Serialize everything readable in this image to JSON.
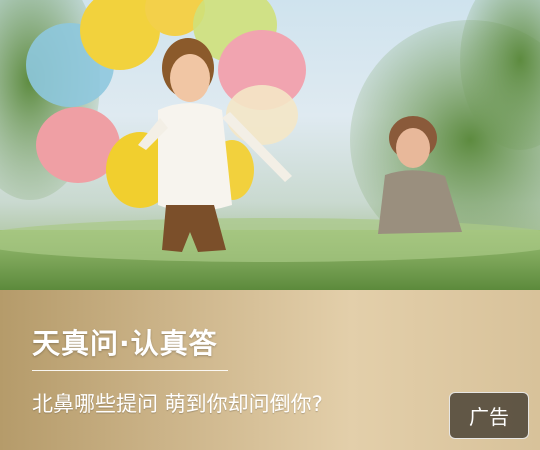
{
  "brand": {
    "text": "天真问·认真答"
  },
  "headline": {
    "text": "北鼻哪些提问 萌到你却问倒你?"
  },
  "badge": {
    "label": "广告"
  },
  "colors": {
    "panel_gold": "#cbb388",
    "badge_bg": "#463e32",
    "text": "#ffffff"
  },
  "photo": {
    "alt": "photo-scene",
    "balloons": [
      "yellow",
      "blue",
      "pink",
      "yellow",
      "green",
      "pink",
      "cream",
      "yellow"
    ]
  }
}
